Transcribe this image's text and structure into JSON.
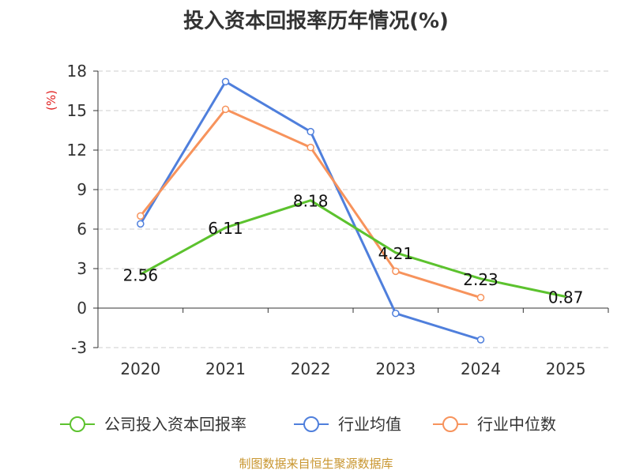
{
  "title": "投入资本回报率历年情况(%)",
  "footer": "制图数据来自恒生聚源数据库",
  "chart_data": {
    "type": "line",
    "title": "投入资本回报率历年情况(%)",
    "ylabel": "(%)",
    "categories": [
      "2020",
      "2021",
      "2022",
      "2023",
      "2024",
      "2025"
    ],
    "ylim": [
      -3,
      18
    ],
    "yticks": [
      18,
      15,
      12,
      9,
      6,
      3,
      0,
      -3
    ],
    "grid": true,
    "legend_position": "bottom",
    "series": [
      {
        "name": "公司投入资本回报率",
        "color": "#5cc22e",
        "values": [
          2.56,
          6.11,
          8.18,
          4.21,
          2.23,
          0.87
        ],
        "labels": [
          "2.56",
          "6.11",
          "8.18",
          "4.21",
          "2.23",
          "0.87"
        ],
        "show_markers": false
      },
      {
        "name": "行业均值",
        "color": "#4f7fdc",
        "values": [
          6.4,
          17.2,
          13.4,
          -0.4,
          -2.4,
          null
        ],
        "show_markers": true
      },
      {
        "name": "行业中位数",
        "color": "#f7935c",
        "values": [
          7.0,
          15.1,
          12.2,
          2.8,
          0.8,
          null
        ],
        "show_markers": true
      }
    ]
  }
}
